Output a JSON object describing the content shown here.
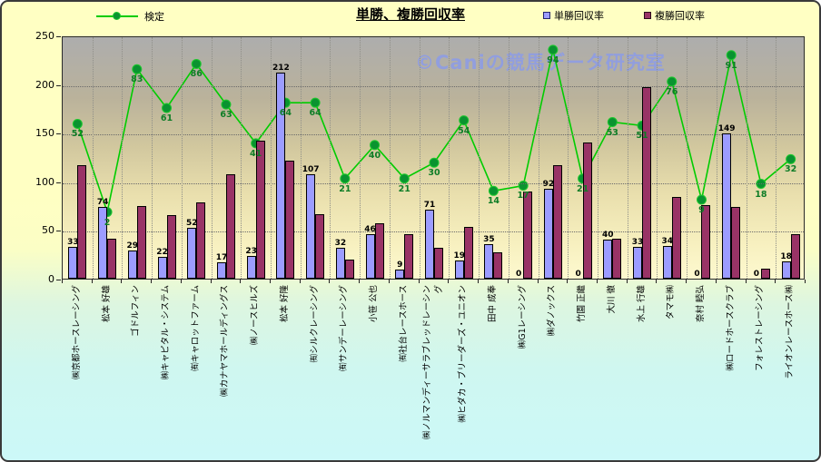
{
  "title": "単勝、複勝回収率",
  "watermark": "©Caniの競馬データ研究室",
  "legend": {
    "line_label": "検定",
    "series1_label": "単勝回収率",
    "series2_label": "複勝回収率"
  },
  "colors": {
    "win_bar": "#9c9cff",
    "place_bar": "#993366",
    "kentei_line": "#00cc00",
    "kentei_marker": "#0a9330",
    "kentei_text": "#0e7d26",
    "watermark_text": "#8c9ce8",
    "background_top": "#ffffc3",
    "background_bottom": "#ccf8f8"
  },
  "chart_data": {
    "type": "bar",
    "title": "単勝、複勝回収率",
    "categories": [
      "㈱京都ホースレーシング",
      "松本 好雄",
      "ゴドルフィン",
      "㈱キャピタル・システム",
      "㈲キャロットファーム",
      "㈱カナヤマホールディングス",
      "㈱ノースヒルズ",
      "松本 好隆",
      "㈲シルクレーシング",
      "㈲サンデーレーシング",
      "小笹 公也",
      "㈲社台レースホース",
      "㈱ノルマンディーサラブレッドレーシング",
      "㈱ヒダカ・ブリーダーズ・ユニオン",
      "田中 成奉",
      "㈱G1レーシング",
      "㈱ダノックス",
      "竹園 正繼",
      "大川 徹",
      "水上 行雄",
      "タマモ㈱",
      "奈村 睦弘",
      "㈱ロードホースクラブ",
      "フォレストレーシング",
      "ライオンレースホース㈱"
    ],
    "series": [
      {
        "name": "単勝回収率",
        "type": "bar",
        "values": [
          33,
          74,
          29,
          22,
          52,
          17,
          23,
          212,
          107,
          32,
          46,
          9,
          71,
          19,
          35,
          0,
          92,
          0,
          40,
          33,
          34,
          0,
          149,
          0,
          18
        ]
      },
      {
        "name": "複勝回収率",
        "type": "bar",
        "values": [
          117,
          41,
          75,
          65,
          78,
          107,
          142,
          121,
          66,
          20,
          57,
          46,
          32,
          53,
          27,
          90,
          117,
          140,
          41,
          197,
          84,
          76,
          74,
          10,
          46
        ]
      },
      {
        "name": "検定",
        "type": "line",
        "axis": "secondary",
        "values": [
          52,
          2,
          83,
          61,
          86,
          63,
          41,
          64,
          64,
          21,
          40,
          21,
          30,
          54,
          14,
          17,
          94,
          21,
          53,
          51,
          76,
          9,
          91,
          18,
          32
        ]
      }
    ],
    "ylabel": "",
    "xlabel": "",
    "ylim": [
      0,
      250
    ],
    "yticks": [
      0,
      50,
      100,
      150,
      200,
      250
    ],
    "grid": "horizontal-and-vertical-dotted",
    "legend_position": "top",
    "secondary_axis_mapping": {
      "note": "kentei line plotted on hidden secondary axis; left-axis-equivalent = offset + scale * value",
      "offset": 66.7,
      "scale": 1.812
    }
  }
}
